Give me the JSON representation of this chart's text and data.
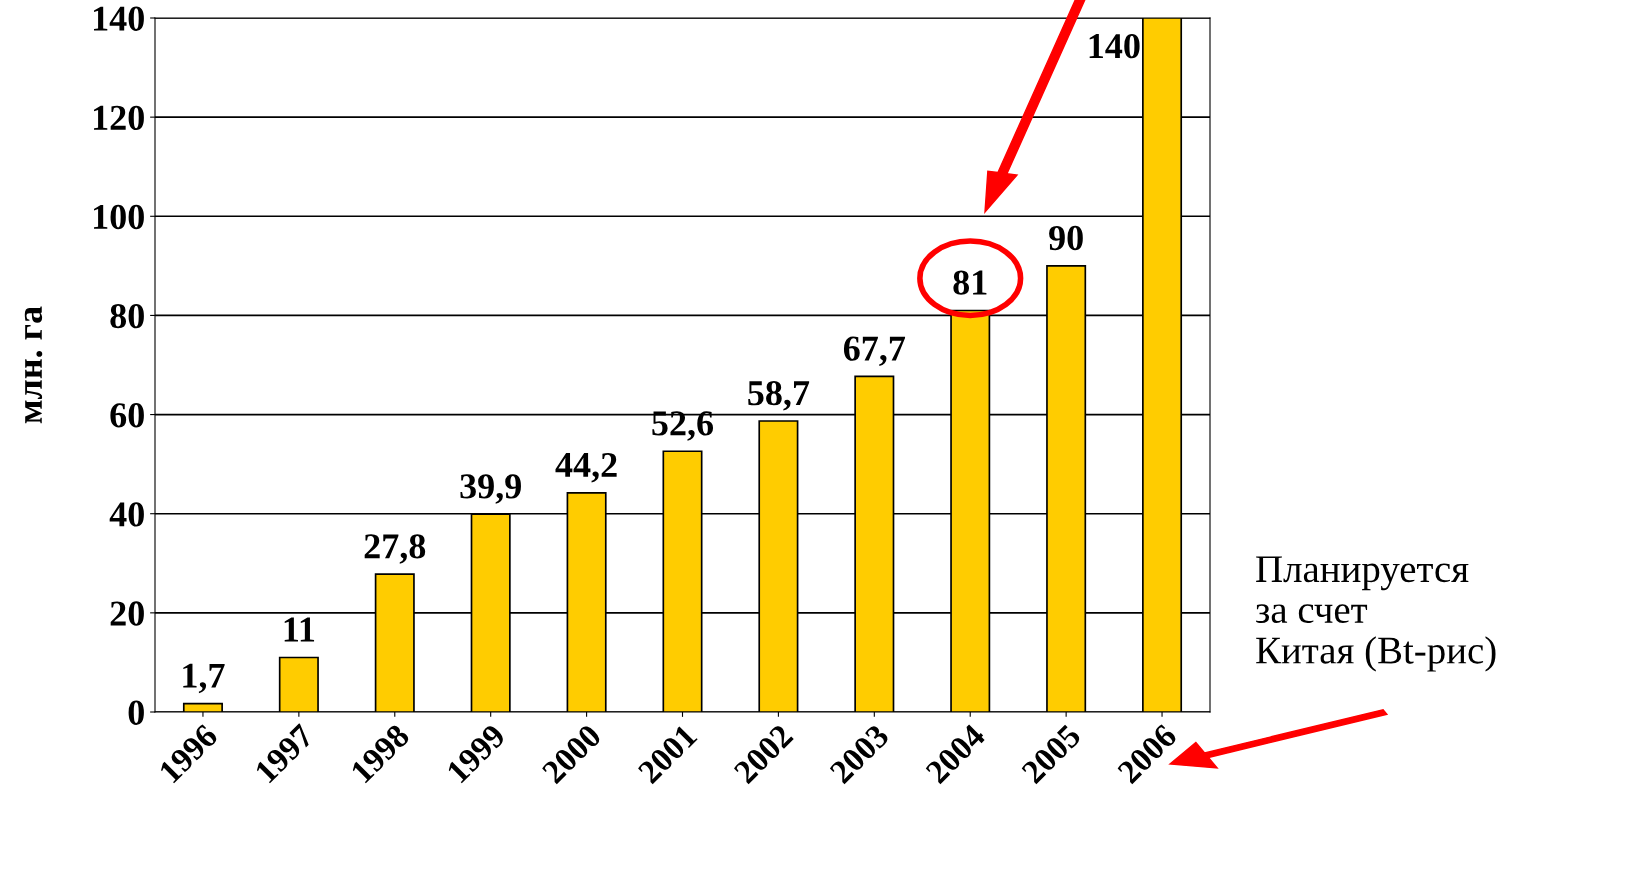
{
  "chart_data": {
    "type": "bar",
    "ylabel": "млн. га",
    "categories": [
      "1996",
      "1997",
      "1998",
      "1999",
      "2000",
      "2001",
      "2002",
      "2003",
      "2004",
      "2005",
      "2006"
    ],
    "values": [
      1.7,
      11,
      27.8,
      39.9,
      44.2,
      52.6,
      58.7,
      67.7,
      81,
      90,
      140
    ],
    "value_labels": [
      "1,7",
      "11",
      "27,8",
      "39,9",
      "44,2",
      "52,6",
      "58,7",
      "67,7",
      "81",
      "90",
      "140"
    ],
    "color": "#ffcc00",
    "ylim": [
      0,
      140
    ],
    "yticks": [
      0,
      20,
      40,
      60,
      80,
      100,
      120,
      140
    ],
    "grid": "y",
    "annotations": [
      "Планируется\nза счет\nКитая (Bt-рис)"
    ]
  }
}
